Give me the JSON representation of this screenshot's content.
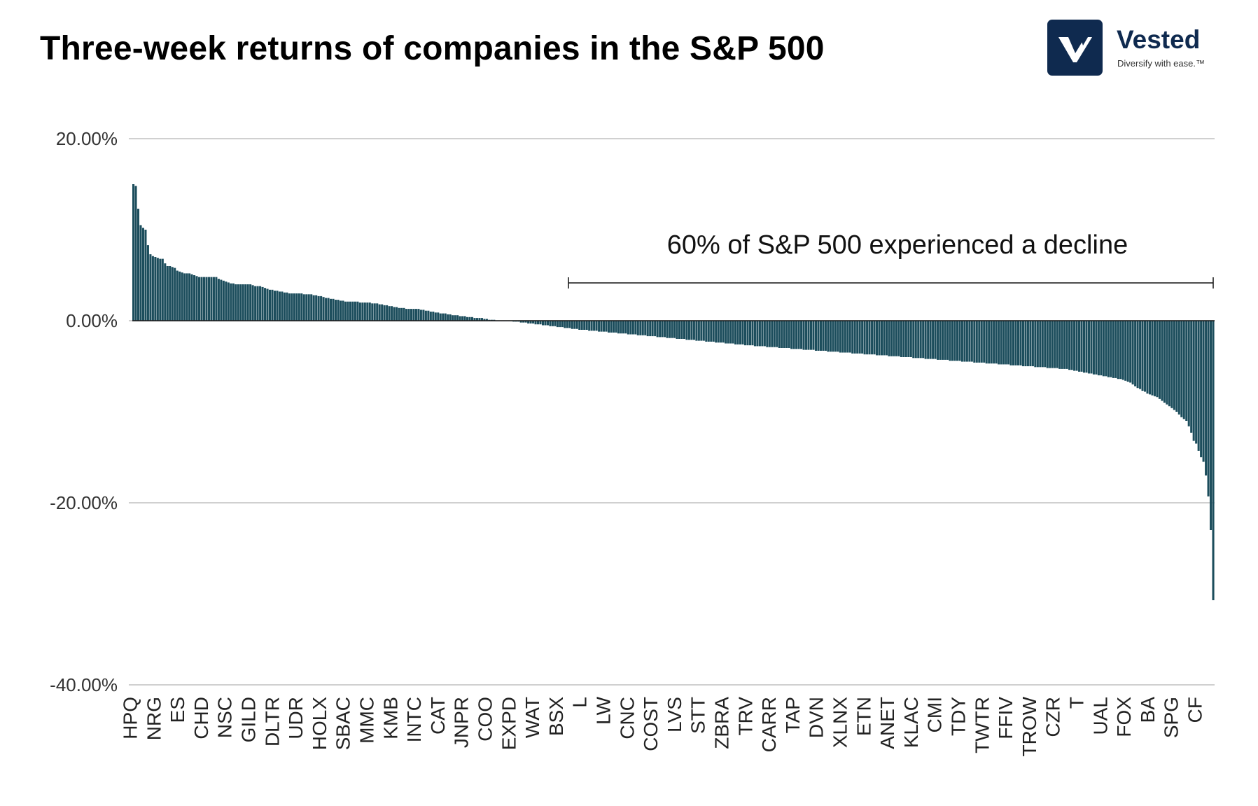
{
  "header": {
    "title": "Three-week returns of companies in the S&P 500"
  },
  "logo": {
    "brand": "Vested",
    "tagline": "Diversify with ease.™",
    "icon": "vested-v-icon",
    "mark_color": "#0f2a4f"
  },
  "chart_data": {
    "type": "bar",
    "title": "Three-week returns of companies in the S&P 500",
    "xlabel": "",
    "ylabel": "",
    "ylim": [
      -40,
      20
    ],
    "yticks": [
      20,
      0,
      -20,
      -40
    ],
    "ytick_labels": [
      "20.00%",
      "0.00%",
      "-20.00%",
      "-40.00%"
    ],
    "grid": true,
    "bar_color": "#1c4d5c",
    "category_labels": [
      "HPQ",
      "NRG",
      "ES",
      "CHD",
      "NSC",
      "GILD",
      "DLTR",
      "UDR",
      "HOLX",
      "SBAC",
      "MMC",
      "KMB",
      "INTC",
      "CAT",
      "JNPR",
      "COO",
      "EXPD",
      "WAT",
      "BSX",
      "L",
      "LW",
      "CNC",
      "COST",
      "LVS",
      "STT",
      "ZBRA",
      "TRV",
      "CARR",
      "TAP",
      "DVN",
      "XLNX",
      "ETN",
      "ANET",
      "KLAC",
      "CMI",
      "TDY",
      "TWTR",
      "FFIV",
      "TROW",
      "CZR",
      "T",
      "UAL",
      "FOX",
      "BA",
      "SPG",
      "CF"
    ],
    "values": [
      15.0,
      14.8,
      12.3,
      10.5,
      10.2,
      10.0,
      8.3,
      7.3,
      7.1,
      7.0,
      6.9,
      6.8,
      6.8,
      6.3,
      6.0,
      6.0,
      5.9,
      5.8,
      5.5,
      5.4,
      5.3,
      5.2,
      5.2,
      5.2,
      5.1,
      5.0,
      4.9,
      4.8,
      4.8,
      4.8,
      4.8,
      4.8,
      4.8,
      4.8,
      4.8,
      4.6,
      4.5,
      4.4,
      4.3,
      4.2,
      4.1,
      4.1,
      4.0,
      4.0,
      4.0,
      4.0,
      4.0,
      4.0,
      4.0,
      3.9,
      3.8,
      3.8,
      3.8,
      3.7,
      3.6,
      3.5,
      3.4,
      3.4,
      3.3,
      3.3,
      3.2,
      3.2,
      3.1,
      3.1,
      3.0,
      3.0,
      3.0,
      3.0,
      3.0,
      3.0,
      2.9,
      2.9,
      2.9,
      2.9,
      2.8,
      2.8,
      2.7,
      2.7,
      2.6,
      2.5,
      2.5,
      2.4,
      2.4,
      2.3,
      2.3,
      2.2,
      2.2,
      2.1,
      2.1,
      2.1,
      2.1,
      2.1,
      2.1,
      2.0,
      2.0,
      2.0,
      2.0,
      2.0,
      1.9,
      1.9,
      1.9,
      1.8,
      1.8,
      1.7,
      1.7,
      1.6,
      1.6,
      1.5,
      1.5,
      1.4,
      1.4,
      1.4,
      1.3,
      1.3,
      1.3,
      1.3,
      1.3,
      1.3,
      1.2,
      1.2,
      1.1,
      1.1,
      1.0,
      1.0,
      0.9,
      0.9,
      0.8,
      0.8,
      0.8,
      0.7,
      0.7,
      0.6,
      0.6,
      0.6,
      0.5,
      0.5,
      0.5,
      0.4,
      0.4,
      0.4,
      0.3,
      0.3,
      0.3,
      0.3,
      0.2,
      0.2,
      0.1,
      0.1,
      0.1,
      0.0,
      0.0,
      0.0,
      0.0,
      0.0,
      0.0,
      0.0,
      -0.1,
      -0.1,
      -0.1,
      -0.2,
      -0.2,
      -0.2,
      -0.3,
      -0.3,
      -0.3,
      -0.4,
      -0.4,
      -0.4,
      -0.5,
      -0.5,
      -0.5,
      -0.6,
      -0.6,
      -0.6,
      -0.7,
      -0.7,
      -0.7,
      -0.8,
      -0.8,
      -0.8,
      -0.9,
      -0.9,
      -0.9,
      -1.0,
      -1.0,
      -1.0,
      -1.0,
      -1.1,
      -1.1,
      -1.1,
      -1.1,
      -1.2,
      -1.2,
      -1.2,
      -1.2,
      -1.3,
      -1.3,
      -1.3,
      -1.3,
      -1.4,
      -1.4,
      -1.4,
      -1.4,
      -1.5,
      -1.5,
      -1.5,
      -1.5,
      -1.6,
      -1.6,
      -1.6,
      -1.6,
      -1.7,
      -1.7,
      -1.7,
      -1.7,
      -1.8,
      -1.8,
      -1.8,
      -1.8,
      -1.9,
      -1.9,
      -1.9,
      -1.9,
      -2.0,
      -2.0,
      -2.0,
      -2.0,
      -2.1,
      -2.1,
      -2.1,
      -2.1,
      -2.2,
      -2.2,
      -2.2,
      -2.2,
      -2.3,
      -2.3,
      -2.3,
      -2.3,
      -2.4,
      -2.4,
      -2.4,
      -2.4,
      -2.5,
      -2.5,
      -2.5,
      -2.5,
      -2.6,
      -2.6,
      -2.6,
      -2.6,
      -2.7,
      -2.7,
      -2.7,
      -2.7,
      -2.8,
      -2.8,
      -2.8,
      -2.8,
      -2.8,
      -2.9,
      -2.9,
      -2.9,
      -2.9,
      -2.9,
      -3.0,
      -3.0,
      -3.0,
      -3.0,
      -3.0,
      -3.1,
      -3.1,
      -3.1,
      -3.1,
      -3.1,
      -3.2,
      -3.2,
      -3.2,
      -3.2,
      -3.2,
      -3.3,
      -3.3,
      -3.3,
      -3.3,
      -3.3,
      -3.4,
      -3.4,
      -3.4,
      -3.4,
      -3.4,
      -3.5,
      -3.5,
      -3.5,
      -3.5,
      -3.5,
      -3.6,
      -3.6,
      -3.6,
      -3.6,
      -3.6,
      -3.7,
      -3.7,
      -3.7,
      -3.7,
      -3.7,
      -3.8,
      -3.8,
      -3.8,
      -3.8,
      -3.8,
      -3.9,
      -3.9,
      -3.9,
      -3.9,
      -3.9,
      -4.0,
      -4.0,
      -4.0,
      -4.0,
      -4.0,
      -4.1,
      -4.1,
      -4.1,
      -4.1,
      -4.1,
      -4.2,
      -4.2,
      -4.2,
      -4.2,
      -4.2,
      -4.3,
      -4.3,
      -4.3,
      -4.3,
      -4.3,
      -4.4,
      -4.4,
      -4.4,
      -4.4,
      -4.4,
      -4.5,
      -4.5,
      -4.5,
      -4.5,
      -4.5,
      -4.6,
      -4.6,
      -4.6,
      -4.6,
      -4.6,
      -4.7,
      -4.7,
      -4.7,
      -4.7,
      -4.7,
      -4.8,
      -4.8,
      -4.8,
      -4.8,
      -4.8,
      -4.9,
      -4.9,
      -4.9,
      -4.9,
      -4.9,
      -5.0,
      -5.0,
      -5.0,
      -5.0,
      -5.0,
      -5.1,
      -5.1,
      -5.1,
      -5.1,
      -5.1,
      -5.2,
      -5.2,
      -5.2,
      -5.2,
      -5.2,
      -5.3,
      -5.3,
      -5.3,
      -5.3,
      -5.4,
      -5.4,
      -5.5,
      -5.5,
      -5.6,
      -5.6,
      -5.7,
      -5.7,
      -5.8,
      -5.8,
      -5.9,
      -5.9,
      -6.0,
      -6.0,
      -6.1,
      -6.1,
      -6.2,
      -6.2,
      -6.3,
      -6.3,
      -6.4,
      -6.4,
      -6.5,
      -6.6,
      -6.7,
      -6.8,
      -7.0,
      -7.2,
      -7.4,
      -7.5,
      -7.7,
      -7.8,
      -8.0,
      -8.1,
      -8.2,
      -8.3,
      -8.4,
      -8.6,
      -8.8,
      -9.0,
      -9.2,
      -9.4,
      -9.6,
      -9.8,
      -10.0,
      -10.3,
      -10.6,
      -10.8,
      -11.0,
      -11.6,
      -12.3,
      -13.2,
      -13.5,
      -14.3,
      -15.0,
      -15.5,
      -17.0,
      -19.3,
      -23.0,
      -30.7
    ],
    "annotations": [
      {
        "text": "60% of S&P 500 experienced a decline",
        "from_label": "L",
        "to": "end"
      }
    ]
  }
}
